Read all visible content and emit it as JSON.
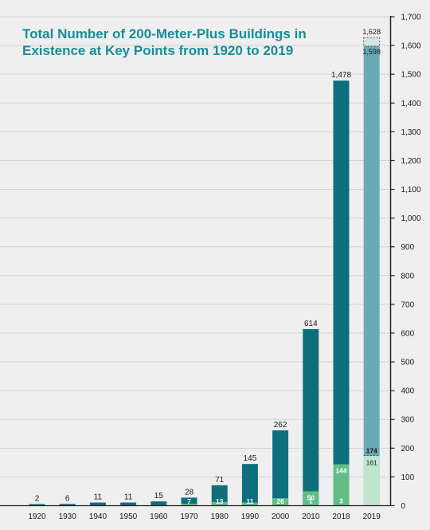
{
  "chart_data": {
    "type": "bar",
    "title_lines": [
      "Total Number of 200-Meter-Plus Buildings in",
      "Existence at Key Points from 1920 to 2019"
    ],
    "categories": [
      "1920",
      "1930",
      "1940",
      "1950",
      "1960",
      "1970",
      "1980",
      "1990",
      "2000",
      "2010",
      "2018",
      "2019"
    ],
    "totals": [
      2,
      6,
      11,
      11,
      15,
      28,
      71,
      145,
      262,
      614,
      1478,
      1628
    ],
    "total_labels": [
      "2",
      "6",
      "11",
      "11",
      "15",
      "28",
      "71",
      "145",
      "262",
      "614",
      "1,478",
      "1,628"
    ],
    "inner_labels": [
      "",
      "",
      "",
      "",
      "",
      "7",
      "13",
      "11",
      "26",
      "50",
      "144",
      "174"
    ],
    "inner_values": [
      0,
      0,
      0,
      0,
      0,
      7,
      13,
      11,
      26,
      50,
      144,
      174
    ],
    "bottom_labels": [
      "",
      "",
      "",
      "",
      "",
      "",
      "",
      "",
      "",
      "1",
      "3",
      "161"
    ],
    "extra_labels": [
      {
        "category": "2019",
        "value": 1598,
        "label": "1,598"
      }
    ],
    "yaxis": {
      "side": "right",
      "ticks": [
        0,
        100,
        200,
        300,
        400,
        500,
        600,
        700,
        800,
        900,
        1000,
        1100,
        1200,
        1300,
        1400,
        1500,
        1600,
        1700
      ],
      "tick_labels": [
        "0",
        "100",
        "200",
        "300",
        "400",
        "500",
        "600",
        "700",
        "800",
        "900",
        "1,000",
        "1,100",
        "1,200",
        "1,300",
        "1,400",
        "1,500",
        "1,600",
        "1,700"
      ]
    },
    "xlabel": "",
    "ylabel": "",
    "grid": true,
    "colors": {
      "background": "#efefef",
      "title": "#158e99",
      "bar": "#0e6f7c",
      "bar_2019": "#6aa9b8",
      "inner": "#62be86",
      "inner_2019": "#bfe5d0",
      "grid": "#d3d3d3",
      "text": "#1a1a1a"
    }
  }
}
